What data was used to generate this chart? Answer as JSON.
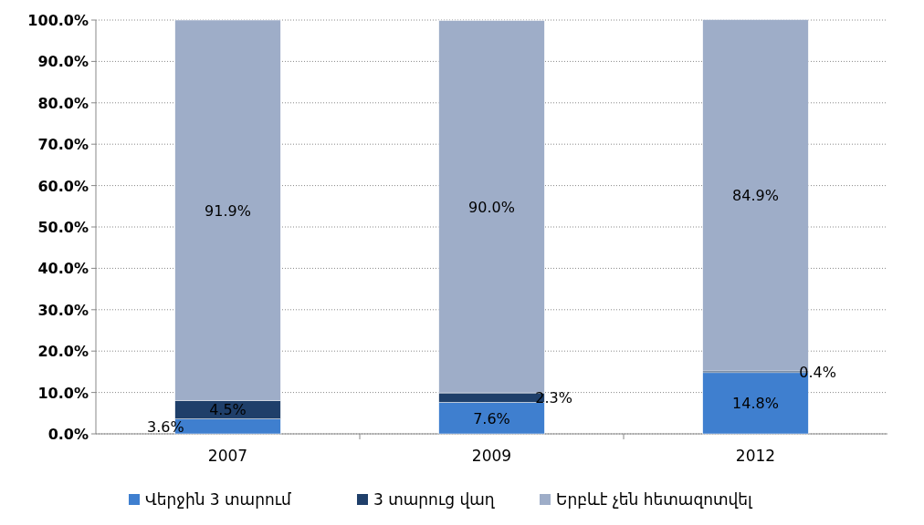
{
  "chart_data": {
    "type": "bar",
    "stacked": true,
    "categories": [
      "2007",
      "2009",
      "2012"
    ],
    "series": [
      {
        "name": "Վերջին 3 տարում",
        "color": "#3f7fcf",
        "values": [
          3.6,
          7.6,
          14.8
        ],
        "value_labels": [
          "3.6%",
          "7.6%",
          "14.8%"
        ]
      },
      {
        "name": "3 տարուց վաղ",
        "color": "#1f3f6a",
        "values": [
          4.5,
          2.3,
          0.4
        ],
        "value_labels": [
          "4.5%",
          "2.3%",
          "0.4%"
        ]
      },
      {
        "name": "Երբևէ չեն հետազոտվել",
        "color": "#9eadc8",
        "values": [
          91.9,
          90.0,
          84.9
        ],
        "value_labels": [
          "91.9%",
          "90.0%",
          "84.9%"
        ]
      }
    ],
    "ylim": [
      0,
      100
    ],
    "yticks": [
      {
        "value": 0,
        "label": "0.0%"
      },
      {
        "value": 10,
        "label": "10.0%"
      },
      {
        "value": 20,
        "label": "20.0%"
      },
      {
        "value": 30,
        "label": "30.0%"
      },
      {
        "value": 40,
        "label": "40.0%"
      },
      {
        "value": 50,
        "label": "50.0%"
      },
      {
        "value": 60,
        "label": "60.0%"
      },
      {
        "value": 70,
        "label": "70.0%"
      },
      {
        "value": 80,
        "label": "80.0%"
      },
      {
        "value": 90,
        "label": "90.0%"
      },
      {
        "value": 100,
        "label": "100.0%"
      }
    ],
    "grid": "y",
    "legend": "bottom"
  }
}
